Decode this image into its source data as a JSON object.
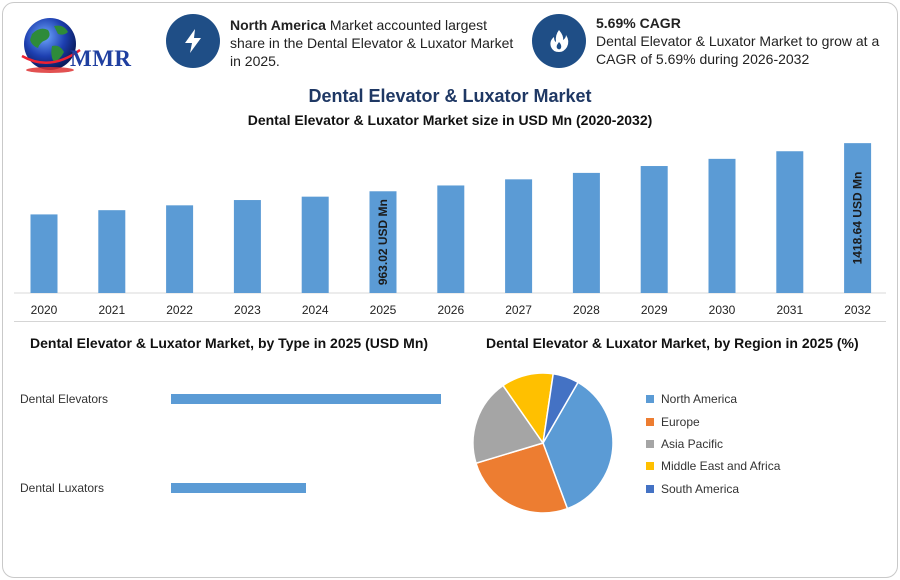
{
  "brand": {
    "logo_text": "MMR"
  },
  "callouts": [
    {
      "icon": "lightning-icon",
      "bold": "North America",
      "text": " Market accounted largest share in the Dental Elevator & Luxator Market in 2025."
    },
    {
      "icon": "flame-icon",
      "bold": "5.69% CAGR",
      "text": "Dental Elevator & Luxator Market to grow at a CAGR of 5.69% during 2026-2032"
    }
  ],
  "titles": {
    "main": "Dental Elevator & Luxator Market",
    "sub": "Dental Elevator & Luxator Market size in USD Mn (2020-2032)",
    "by_type": "Dental Elevator & Luxator Market, by Type in 2025 (USD Mn)",
    "by_region": "Dental Elevator & Luxator Market, by Region in 2025 (%)"
  },
  "colors": {
    "bar": "#5b9bd5",
    "icon_bg": "#1f4e86",
    "title": "#1f3864"
  },
  "chart_data": [
    {
      "type": "bar",
      "title": "Dental Elevator & Luxator Market size in USD Mn (2020-2032)",
      "categories": [
        "2020",
        "2021",
        "2022",
        "2023",
        "2024",
        "2025",
        "2026",
        "2027",
        "2028",
        "2029",
        "2030",
        "2031",
        "2032"
      ],
      "values": [
        744,
        784,
        830,
        880,
        912,
        963.02,
        1018,
        1076,
        1137,
        1202,
        1270,
        1342,
        1418.64
      ],
      "data_labels": [
        {
          "category": "2025",
          "text": "963.02 USD Mn"
        },
        {
          "category": "2032",
          "text": "1418.64 USD Mn"
        }
      ],
      "ylim": [
        0,
        1420
      ],
      "xlabel": "",
      "ylabel": ""
    },
    {
      "type": "bar",
      "orientation": "horizontal",
      "title": "Dental Elevator & Luxator Market, by Type in 2025 (USD Mn)",
      "categories": [
        "Dental Elevators",
        "Dental Luxators"
      ],
      "values": [
        620,
        310
      ],
      "xlim": [
        0,
        620
      ]
    },
    {
      "type": "pie",
      "title": "Dental Elevator & Luxator Market, by Region in 2025 (%)",
      "labels": [
        "North America",
        "Europe",
        "Asia Pacific",
        "Middle East and Africa",
        "South America"
      ],
      "values": [
        36,
        26,
        20,
        12,
        6
      ],
      "colors": [
        "#5b9bd5",
        "#ed7d31",
        "#a5a5a5",
        "#ffc000",
        "#4472c4"
      ],
      "legend_position": "right"
    }
  ]
}
